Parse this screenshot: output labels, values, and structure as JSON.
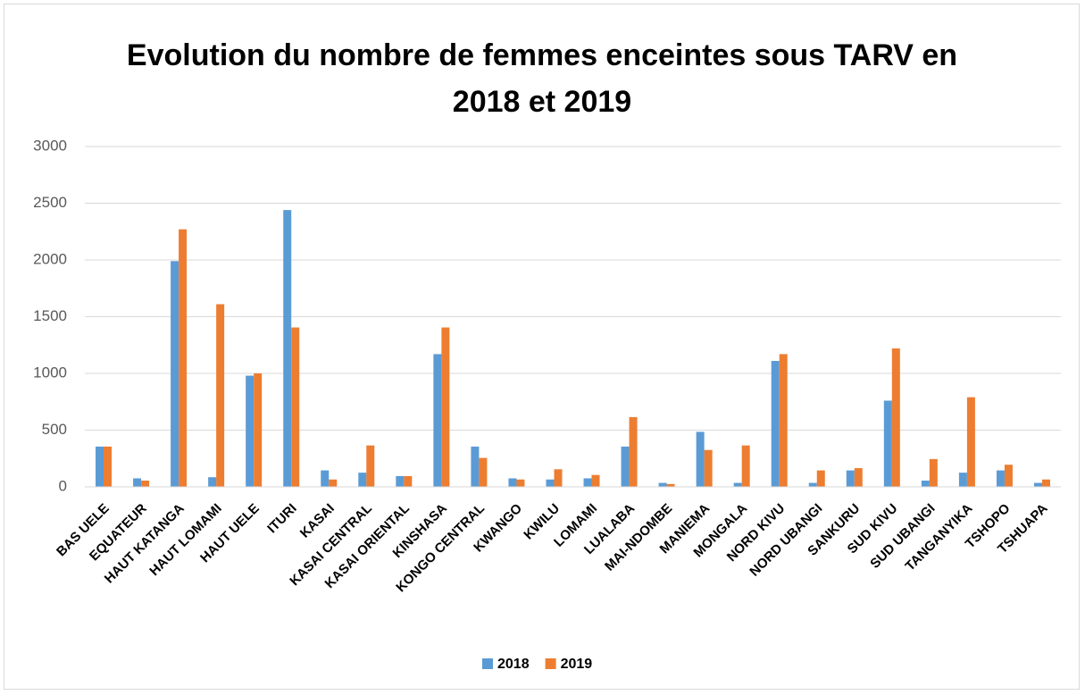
{
  "chart_data": {
    "type": "bar",
    "title": "Evolution du nombre de femmes enceintes sous TARV en 2018 et 2019",
    "categories": [
      "BAS UELE",
      "EQUATEUR",
      "HAUT KATANGA",
      "HAUT LOMAMI",
      "HAUT UELE",
      "ITURI",
      "KASAI",
      "KASAI CENTRAL",
      "KASAI ORIENTAL",
      "KINSHASA",
      "KONGO CENTRAL",
      "KWANGO",
      "KWILU",
      "LOMAMI",
      "LUALABA",
      "MAI-NDOMBE",
      "MANIEMA",
      "MONGALA",
      "NORD KIVU",
      "NORD UBANGI",
      "SANKURU",
      "SUD KIVU",
      "SUD UBANGI",
      "TANGANYIKA",
      "TSHOPO",
      "TSHUAPA"
    ],
    "series": [
      {
        "name": "2018",
        "color": "#5b9bd5",
        "values": [
          355,
          75,
          1990,
          85,
          980,
          2440,
          145,
          125,
          95,
          1170,
          355,
          75,
          65,
          75,
          355,
          35,
          485,
          35,
          1110,
          35,
          145,
          760,
          55,
          125,
          145,
          35
        ]
      },
      {
        "name": "2019",
        "color": "#ed7d31",
        "values": [
          355,
          55,
          2270,
          1610,
          1000,
          1405,
          65,
          365,
          95,
          1405,
          255,
          65,
          155,
          105,
          615,
          25,
          325,
          365,
          1170,
          145,
          165,
          1220,
          245,
          790,
          195,
          65
        ]
      }
    ],
    "ylim": [
      0,
      3000
    ],
    "yticks": [
      0,
      500,
      1000,
      1500,
      2000,
      2500,
      3000
    ],
    "grid": true,
    "legend": "bottom"
  }
}
